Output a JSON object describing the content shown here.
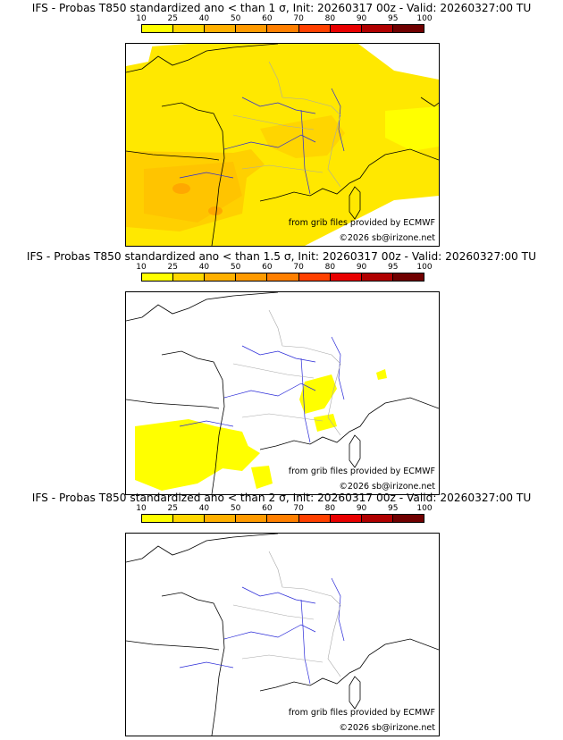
{
  "colorbar": {
    "ticks": [
      "10",
      "25",
      "40",
      "50",
      "60",
      "70",
      "80",
      "90",
      "95",
      "100"
    ],
    "colors": [
      "#ffff00",
      "#ffd700",
      "#ffb000",
      "#ff9a00",
      "#ff7f00",
      "#ff4000",
      "#e80000",
      "#b00000",
      "#700000"
    ]
  },
  "panels": [
    {
      "title": "IFS - Probas T850  standardized ano < than 1 σ, Init: 20260317 00z - Valid: 20260327:00 TU",
      "source": "from grib files provided by ECMWF",
      "copyright": "©2026 sb@irizone.net"
    },
    {
      "title": "IFS - Probas T850  standardized ano < than 1.5 σ, Init: 20260317 00z - Valid: 20260327:00 TU",
      "source": "from grib files provided by ECMWF",
      "copyright": "©2026 sb@irizone.net"
    },
    {
      "title": "IFS - Probas T850  standardized ano < than 2 σ, Init: 20260317 00z - Valid: 20260327:00 TU",
      "source": "from grib files provided by ECMWF",
      "copyright": "©2026 sb@irizone.net"
    }
  ],
  "colors": {
    "coast": "#000000",
    "rivers": "#2a2ad8",
    "borders": "#a8a8a8"
  }
}
